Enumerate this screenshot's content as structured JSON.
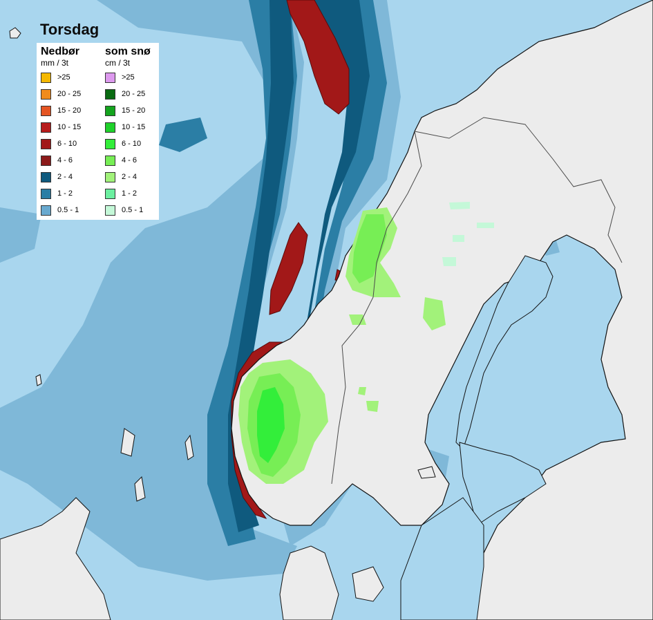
{
  "map": {
    "title": "Torsdag",
    "colors": {
      "sea": "#a9d6ee",
      "land": "#ececec",
      "border": "#4a4a4a",
      "coast": "#111111"
    }
  },
  "legend": {
    "precip": {
      "heading": "Nedbør",
      "unit": "mm / 3t",
      "items": [
        {
          "label": ">25",
          "color": "#f5b800"
        },
        {
          "label": "20 - 25",
          "color": "#f08b1c"
        },
        {
          "label": "15 - 20",
          "color": "#e45422"
        },
        {
          "label": "10 - 15",
          "color": "#b71c1c"
        },
        {
          "label": "6 - 10",
          "color": "#a21818"
        },
        {
          "label": "4 - 6",
          "color": "#8c1a1a"
        },
        {
          "label": "2 - 4",
          "color": "#0f5a7e"
        },
        {
          "label": "1 - 2",
          "color": "#2b7ea5"
        },
        {
          "label": "0.5 - 1",
          "color": "#68a9cf"
        }
      ]
    },
    "snow": {
      "heading": "som snø",
      "unit": "cm / 3t",
      "items": [
        {
          "label": ">25",
          "color": "#dd99ee"
        },
        {
          "label": "20 - 25",
          "color": "#0a6b12"
        },
        {
          "label": "15 - 20",
          "color": "#14a41e"
        },
        {
          "label": "10 - 15",
          "color": "#1fd12a"
        },
        {
          "label": "6 - 10",
          "color": "#33ee3a"
        },
        {
          "label": "4 - 6",
          "color": "#77ee55"
        },
        {
          "label": "2 - 4",
          "color": "#a2f27a"
        },
        {
          "label": "1 - 2",
          "color": "#6cefa0"
        },
        {
          "label": "0.5 - 1",
          "color": "#c4f8d8"
        }
      ]
    }
  }
}
